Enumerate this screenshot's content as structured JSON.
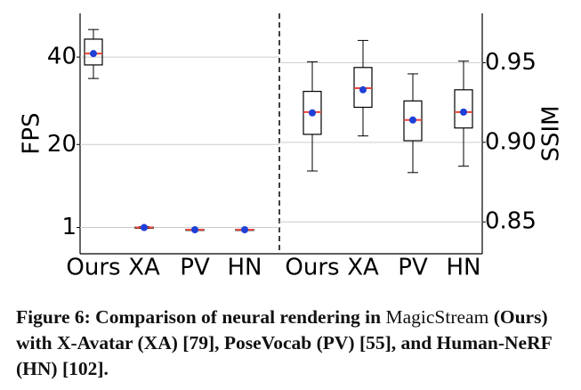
{
  "chart_data": [
    {
      "type": "box",
      "ylabel": "FPS",
      "categories": [
        "Ours",
        "XA",
        "PV",
        "HN"
      ],
      "boxes": [
        {
          "whislo": 35.1,
          "q1": 38.2,
          "med": 40.8,
          "q3": 44.1,
          "whishi": 46.3,
          "mean": 40.8
        },
        {
          "whislo": 0.8,
          "q1": 0.85,
          "med": 1.0,
          "q3": 1.1,
          "whishi": 1.2,
          "mean": 1.0
        },
        {
          "whislo": 0.4,
          "q1": 0.45,
          "med": 0.5,
          "q3": 0.55,
          "whishi": 0.6,
          "mean": 0.5
        },
        {
          "whislo": 0.4,
          "q1": 0.45,
          "med": 0.5,
          "q3": 0.55,
          "whishi": 0.6,
          "mean": 0.5
        }
      ],
      "ylim": [
        -5,
        50
      ],
      "yticks": [
        1,
        20,
        40
      ],
      "grid": true,
      "median_color": "#e8453c",
      "mean_color": "#1f3fd6"
    },
    {
      "type": "box",
      "ylabel": "SSIM",
      "categories": [
        "Ours",
        "XA",
        "PV",
        "HN"
      ],
      "boxes": [
        {
          "whislo": 0.882,
          "q1": 0.905,
          "med": 0.919,
          "q3": 0.932,
          "whishi": 0.9506,
          "mean": 0.9185
        },
        {
          "whislo": 0.904,
          "q1": 0.922,
          "med": 0.934,
          "q3": 0.947,
          "whishi": 0.964,
          "mean": 0.933
        },
        {
          "whislo": 0.881,
          "q1": 0.901,
          "med": 0.914,
          "q3": 0.926,
          "whishi": 0.943,
          "mean": 0.914
        },
        {
          "whislo": 0.885,
          "q1": 0.909,
          "med": 0.919,
          "q3": 0.933,
          "whishi": 0.951,
          "mean": 0.919
        }
      ],
      "ylim": [
        0.83,
        0.981
      ],
      "yticks": [
        0.85,
        {
          "value": 0.9,
          "label": "0.90"
        },
        0.95
      ],
      "grid": true,
      "median_color": "#e8453c",
      "mean_color": "#1f3fd6"
    }
  ],
  "caption": [
    "Figure 6: Comparison of neural rendering in ",
    "MagicStream",
    " (Ours) with X-Avatar (XA) [79], PoseVocab (PV) [55], and Human-NeRF (HN) [102]."
  ]
}
